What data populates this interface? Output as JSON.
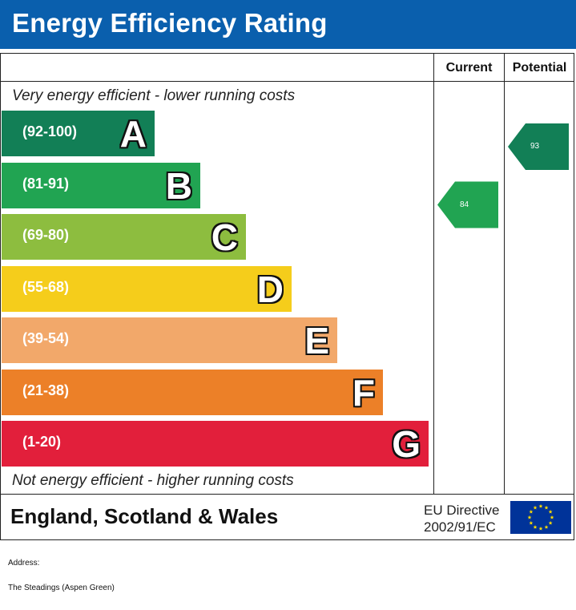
{
  "header": {
    "title": "Energy Efficiency Rating"
  },
  "columns": {
    "current": "Current",
    "potential": "Potential"
  },
  "captions": {
    "top": "Very energy efficient - lower running costs",
    "bottom": "Not energy efficient - higher running costs"
  },
  "chart_data": {
    "type": "bar",
    "bands": [
      {
        "range": "(92-100)",
        "letter": "A",
        "color": "#127f56"
      },
      {
        "range": "(81-91)",
        "letter": "B",
        "color": "#21a452"
      },
      {
        "range": "(69-80)",
        "letter": "C",
        "color": "#8dbd3f"
      },
      {
        "range": "(55-68)",
        "letter": "D",
        "color": "#f5cd1b"
      },
      {
        "range": "(39-54)",
        "letter": "E",
        "color": "#f2a86a"
      },
      {
        "range": "(21-38)",
        "letter": "F",
        "color": "#ec8028"
      },
      {
        "range": "(1-20)",
        "letter": "G",
        "color": "#e21f3b"
      }
    ],
    "current": {
      "value": 84,
      "band": "B",
      "color": "#21a452"
    },
    "potential": {
      "value": 93,
      "band": "A",
      "color": "#127f56"
    }
  },
  "footer": {
    "region": "England, Scotland & Wales",
    "directive_line1": "EU Directive",
    "directive_line2": "2002/91/EC",
    "flag_icon": "eu-flag-icon",
    "flag_color": "#003399",
    "star_color": "#ffdd00"
  },
  "address": {
    "label": "Address:",
    "value": "The Steadings (Aspen Green)"
  }
}
